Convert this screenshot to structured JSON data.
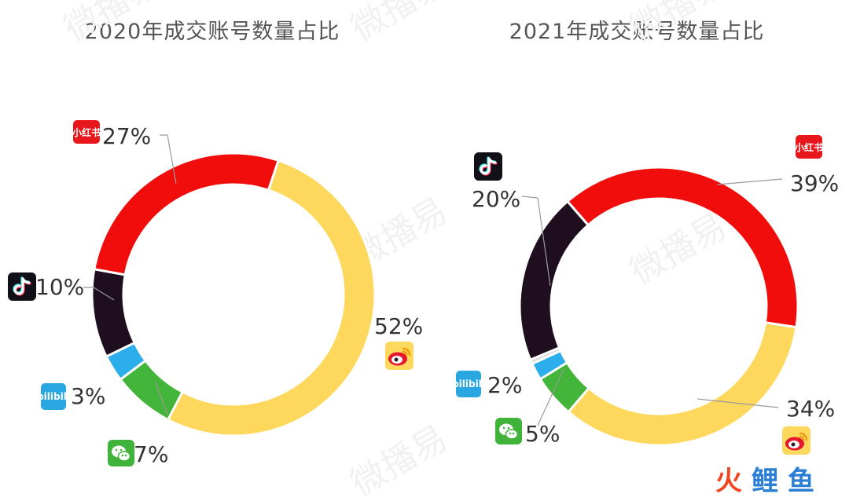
{
  "chart_data": [
    {
      "type": "pie",
      "title": "2020年成交账号数量占比",
      "slices": [
        {
          "platform": "weibo",
          "value": 52,
          "label": "52%",
          "color": "#FDD85D"
        },
        {
          "platform": "wechat",
          "value": 7,
          "label": "7%",
          "color": "#43B53A"
        },
        {
          "platform": "bilibili",
          "value": 3,
          "label": "3%",
          "color": "#2BAEEB"
        },
        {
          "platform": "douyin",
          "value": 10,
          "label": "10%",
          "color": "#1E0E1E"
        },
        {
          "platform": "xiaohongshu",
          "value": 27,
          "label": "27%",
          "color": "#F20D0D"
        }
      ]
    },
    {
      "type": "pie",
      "title": "2021年成交账号数量占比",
      "slices": [
        {
          "platform": "xiaohongshu",
          "value": 39,
          "label": "39%",
          "color": "#F20D0D"
        },
        {
          "platform": "weibo",
          "value": 34,
          "label": "34%",
          "color": "#FDD85D"
        },
        {
          "platform": "wechat",
          "value": 5,
          "label": "5%",
          "color": "#43B53A"
        },
        {
          "platform": "bilibili",
          "value": 2,
          "label": "2%",
          "color": "#2BAEEB"
        },
        {
          "platform": "other",
          "value": 0.5,
          "label": "",
          "color": "#D9D9D9"
        },
        {
          "platform": "douyin",
          "value": 20,
          "label": "20%",
          "color": "#1E0E1E"
        }
      ]
    }
  ],
  "logos": {
    "xiaohongshu_text": "小红书",
    "bilibili_text": "bilibili"
  },
  "watermark": {
    "text": "微播易",
    "brand_chars": [
      "火",
      "鲤",
      "鱼"
    ]
  }
}
